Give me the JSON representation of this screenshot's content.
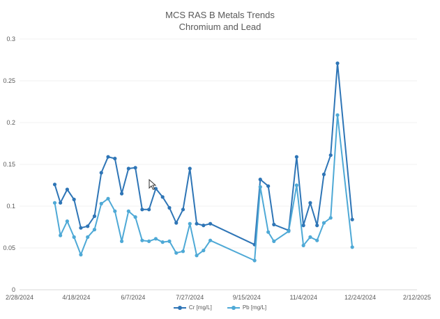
{
  "chart_data": {
    "type": "line",
    "title": "MCS RAS B Metals Trends",
    "subtitle": "Chromium and Lead",
    "xlabel": "",
    "ylabel": "",
    "ylim": [
      0,
      0.3
    ],
    "y_ticks": [
      "0",
      "0.05",
      "0.1",
      "0.15",
      "0.2",
      "0.25",
      "0.3"
    ],
    "x_ticks": [
      "2/28/2024",
      "4/18/2024",
      "6/7/2024",
      "7/27/2024",
      "9/15/2024",
      "11/4/2024",
      "12/24/2024",
      "2/12/2025"
    ],
    "xlim": [
      "2024-02-28",
      "2025-02-12"
    ],
    "grid": true,
    "legend_position": "bottom",
    "series": [
      {
        "name": "Cr [mg/L]",
        "color": "#2e75b6",
        "points": [
          [
            "2024-03-30",
            0.126
          ],
          [
            "2024-04-04",
            0.104
          ],
          [
            "2024-04-10",
            0.12
          ],
          [
            "2024-04-16",
            0.108
          ],
          [
            "2024-04-22",
            0.074
          ],
          [
            "2024-04-28",
            0.076
          ],
          [
            "2024-05-04",
            0.088
          ],
          [
            "2024-05-10",
            0.14
          ],
          [
            "2024-05-16",
            0.159
          ],
          [
            "2024-05-22",
            0.157
          ],
          [
            "2024-05-28",
            0.115
          ],
          [
            "2024-06-03",
            0.145
          ],
          [
            "2024-06-09",
            0.146
          ],
          [
            "2024-06-15",
            0.096
          ],
          [
            "2024-06-21",
            0.096
          ],
          [
            "2024-06-27",
            0.121
          ],
          [
            "2024-07-03",
            0.111
          ],
          [
            "2024-07-09",
            0.098
          ],
          [
            "2024-07-15",
            0.08
          ],
          [
            "2024-07-21",
            0.096
          ],
          [
            "2024-07-27",
            0.145
          ],
          [
            "2024-08-02",
            0.079
          ],
          [
            "2024-08-08",
            0.077
          ],
          [
            "2024-08-14",
            0.079
          ],
          [
            "2024-09-22",
            0.054
          ],
          [
            "2024-09-27",
            0.132
          ],
          [
            "2024-10-04",
            0.124
          ],
          [
            "2024-10-09",
            0.078
          ],
          [
            "2024-10-22",
            0.071
          ],
          [
            "2024-10-29",
            0.159
          ],
          [
            "2024-11-04",
            0.077
          ],
          [
            "2024-11-10",
            0.104
          ],
          [
            "2024-11-16",
            0.077
          ],
          [
            "2024-11-22",
            0.138
          ],
          [
            "2024-11-28",
            0.161
          ],
          [
            "2024-12-04",
            0.271
          ],
          [
            "2024-12-17",
            0.084
          ]
        ]
      },
      {
        "name": "Pb [mg/L]",
        "color": "#4ea9d6",
        "points": [
          [
            "2024-03-30",
            0.104
          ],
          [
            "2024-04-04",
            0.065
          ],
          [
            "2024-04-10",
            0.082
          ],
          [
            "2024-04-16",
            0.063
          ],
          [
            "2024-04-22",
            0.042
          ],
          [
            "2024-04-28",
            0.063
          ],
          [
            "2024-05-04",
            0.072
          ],
          [
            "2024-05-10",
            0.103
          ],
          [
            "2024-05-16",
            0.109
          ],
          [
            "2024-05-22",
            0.094
          ],
          [
            "2024-05-28",
            0.058
          ],
          [
            "2024-06-03",
            0.094
          ],
          [
            "2024-06-09",
            0.087
          ],
          [
            "2024-06-15",
            0.059
          ],
          [
            "2024-06-21",
            0.058
          ],
          [
            "2024-06-27",
            0.061
          ],
          [
            "2024-07-03",
            0.057
          ],
          [
            "2024-07-09",
            0.058
          ],
          [
            "2024-07-15",
            0.044
          ],
          [
            "2024-07-21",
            0.046
          ],
          [
            "2024-07-27",
            0.079
          ],
          [
            "2024-08-02",
            0.041
          ],
          [
            "2024-08-08",
            0.047
          ],
          [
            "2024-08-14",
            0.059
          ],
          [
            "2024-09-22",
            0.035
          ],
          [
            "2024-09-27",
            0.123
          ],
          [
            "2024-10-04",
            0.069
          ],
          [
            "2024-10-09",
            0.058
          ],
          [
            "2024-10-22",
            0.07
          ],
          [
            "2024-10-29",
            0.125
          ],
          [
            "2024-11-04",
            0.053
          ],
          [
            "2024-11-10",
            0.063
          ],
          [
            "2024-11-16",
            0.059
          ],
          [
            "2024-11-22",
            0.08
          ],
          [
            "2024-11-28",
            0.086
          ],
          [
            "2024-12-04",
            0.209
          ],
          [
            "2024-12-17",
            0.051
          ]
        ]
      }
    ]
  }
}
